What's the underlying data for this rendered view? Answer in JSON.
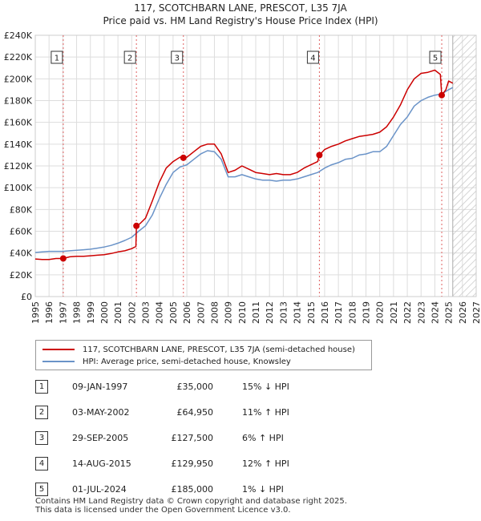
{
  "title": "117, SCOTCHBARN LANE, PRESCOT, L35 7JA",
  "subtitle": "Price paid vs. HM Land Registry's House Price Index (HPI)",
  "colors": {
    "property": "#cc0000",
    "hpi": "#6a93c8",
    "marker_line": "#e06060",
    "grid": "#dddddd",
    "future_hatch": "#bbbbbb"
  },
  "legend": {
    "property_label": "117, SCOTCHBARN LANE, PRESCOT, L35 7JA (semi-detached house)",
    "hpi_label": "HPI: Average price, semi-detached house, Knowsley"
  },
  "transactions": [
    {
      "num": "1",
      "date": "09-JAN-1997",
      "price": "£35,000",
      "hpi": "15% ↓ HPI"
    },
    {
      "num": "2",
      "date": "03-MAY-2002",
      "price": "£64,950",
      "hpi": "11% ↑ HPI"
    },
    {
      "num": "3",
      "date": "29-SEP-2005",
      "price": "£127,500",
      "hpi": "6% ↑ HPI"
    },
    {
      "num": "4",
      "date": "14-AUG-2015",
      "price": "£129,950",
      "hpi": "12% ↑ HPI"
    },
    {
      "num": "5",
      "date": "01-JUL-2024",
      "price": "£185,000",
      "hpi": "1% ↓ HPI"
    }
  ],
  "footer": {
    "line1": "Contains HM Land Registry data © Crown copyright and database right 2025.",
    "line2": "This data is licensed under the Open Government Licence v3.0."
  },
  "chart_data": {
    "type": "line",
    "title": "117, SCOTCHBARN LANE, PRESCOT, L35 7JA",
    "subtitle": "Price paid vs. HM Land Registry's House Price Index (HPI)",
    "xlabel": "",
    "ylabel": "",
    "xlim": [
      1995,
      2027
    ],
    "ylim": [
      0,
      240000
    ],
    "x_ticks": [
      1995,
      1996,
      1997,
      1998,
      1999,
      2000,
      2001,
      2002,
      2003,
      2004,
      2005,
      2006,
      2007,
      2008,
      2009,
      2010,
      2011,
      2012,
      2013,
      2014,
      2015,
      2016,
      2017,
      2018,
      2019,
      2020,
      2021,
      2022,
      2023,
      2024,
      2025,
      2026,
      2027
    ],
    "y_ticks": [
      {
        "value": 0,
        "label": "£0"
      },
      {
        "value": 20000,
        "label": "£20K"
      },
      {
        "value": 40000,
        "label": "£40K"
      },
      {
        "value": 60000,
        "label": "£60K"
      },
      {
        "value": 80000,
        "label": "£80K"
      },
      {
        "value": 100000,
        "label": "£100K"
      },
      {
        "value": 120000,
        "label": "£120K"
      },
      {
        "value": 140000,
        "label": "£140K"
      },
      {
        "value": 160000,
        "label": "£160K"
      },
      {
        "value": 180000,
        "label": "£180K"
      },
      {
        "value": 200000,
        "label": "£200K"
      },
      {
        "value": 220000,
        "label": "£220K"
      },
      {
        "value": 240000,
        "label": "£240K"
      }
    ],
    "future_start": 2025.3,
    "sales": [
      {
        "label": "1",
        "x": 1997.03,
        "y": 35000
      },
      {
        "label": "2",
        "x": 2002.34,
        "y": 64950
      },
      {
        "label": "3",
        "x": 2005.75,
        "y": 127500
      },
      {
        "label": "4",
        "x": 2015.62,
        "y": 129950
      },
      {
        "label": "5",
        "x": 2024.5,
        "y": 185000
      }
    ],
    "series": [
      {
        "name": "117, SCOTCHBARN LANE, PRESCOT, L35 7JA (semi-detached house)",
        "x": [
          1995.0,
          1995.5,
          1996.0,
          1996.5,
          1997.03,
          1997.5,
          1998.0,
          1998.5,
          1999.0,
          1999.5,
          2000.0,
          2000.5,
          2001.0,
          2001.5,
          2002.0,
          2002.3,
          2002.34,
          2002.6,
          2003.0,
          2003.5,
          2004.0,
          2004.5,
          2005.0,
          2005.5,
          2005.75,
          2006.0,
          2006.5,
          2007.0,
          2007.5,
          2008.0,
          2008.5,
          2009.0,
          2009.5,
          2010.0,
          2010.5,
          2011.0,
          2011.5,
          2012.0,
          2012.5,
          2013.0,
          2013.5,
          2014.0,
          2014.5,
          2015.0,
          2015.5,
          2015.62,
          2016.0,
          2016.5,
          2017.0,
          2017.5,
          2018.0,
          2018.5,
          2019.0,
          2019.5,
          2020.0,
          2020.5,
          2021.0,
          2021.5,
          2022.0,
          2022.5,
          2023.0,
          2023.5,
          2024.0,
          2024.4,
          2024.5,
          2024.8,
          2025.0,
          2025.3
        ],
        "y": [
          34500,
          34000,
          34000,
          35000,
          35000,
          36500,
          37000,
          37000,
          37500,
          38000,
          38500,
          39500,
          41000,
          42000,
          44000,
          46000,
          64950,
          67000,
          72000,
          88000,
          105000,
          118000,
          124000,
          128000,
          127500,
          128000,
          133000,
          138000,
          140000,
          140000,
          131000,
          114000,
          116000,
          120000,
          117000,
          114000,
          113000,
          112000,
          113000,
          112000,
          112000,
          114000,
          118000,
          121000,
          124000,
          129950,
          135000,
          138000,
          140000,
          143000,
          145000,
          147000,
          148000,
          149000,
          151000,
          156000,
          165000,
          176000,
          190000,
          200000,
          205000,
          206000,
          208000,
          204000,
          185000,
          190000,
          198000,
          196000
        ]
      },
      {
        "name": "HPI: Average price, semi-detached house, Knowsley",
        "x": [
          1995.0,
          1995.5,
          1996.0,
          1996.5,
          1997.0,
          1997.5,
          1998.0,
          1998.5,
          1999.0,
          1999.5,
          2000.0,
          2000.5,
          2001.0,
          2001.5,
          2002.0,
          2002.5,
          2003.0,
          2003.5,
          2004.0,
          2004.5,
          2005.0,
          2005.5,
          2006.0,
          2006.5,
          2007.0,
          2007.5,
          2008.0,
          2008.5,
          2009.0,
          2009.5,
          2010.0,
          2010.5,
          2011.0,
          2011.5,
          2012.0,
          2012.5,
          2013.0,
          2013.5,
          2014.0,
          2014.5,
          2015.0,
          2015.5,
          2016.0,
          2016.5,
          2017.0,
          2017.5,
          2018.0,
          2018.5,
          2019.0,
          2019.5,
          2020.0,
          2020.5,
          2021.0,
          2021.5,
          2022.0,
          2022.5,
          2023.0,
          2023.5,
          2024.0,
          2024.5,
          2025.0,
          2025.3
        ],
        "y": [
          40500,
          41000,
          41500,
          41500,
          41500,
          42000,
          42500,
          43000,
          43500,
          44500,
          45500,
          47000,
          49000,
          51500,
          54500,
          60000,
          65000,
          75000,
          90000,
          103000,
          114000,
          119000,
          121000,
          126000,
          131000,
          134000,
          133000,
          126000,
          110000,
          110000,
          112000,
          110000,
          108000,
          107000,
          107000,
          106000,
          107000,
          107000,
          108000,
          110000,
          112000,
          114000,
          118000,
          121000,
          123000,
          126000,
          127000,
          130000,
          131000,
          133000,
          133000,
          138000,
          148000,
          158000,
          165000,
          175000,
          180000,
          183000,
          185000,
          186000,
          190000,
          192000
        ]
      }
    ]
  }
}
